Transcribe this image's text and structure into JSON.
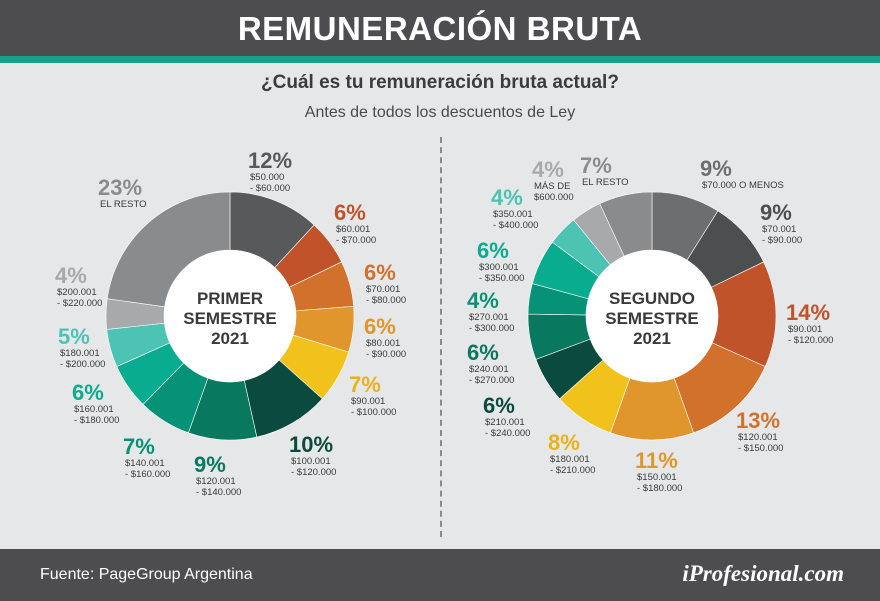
{
  "header": {
    "title": "REMUNERACIÓN BRUTA"
  },
  "question": "¿Cuál es tu remuneración bruta actual?",
  "subtitle": "Antes de todos los descuentos de Ley",
  "footer": {
    "source": "Fuente: PageGroup Argentina",
    "brand": "iProfesional.com"
  },
  "chart_data": [
    {
      "type": "pie",
      "title": "PRIMER SEMESTRE 2021",
      "slices": [
        {
          "pct": "12%",
          "value": 12,
          "range": [
            "$50.000",
            "- $60.000"
          ],
          "color": "#58595b"
        },
        {
          "pct": "6%",
          "value": 6,
          "range": [
            "$60.001",
            "- $70.000"
          ],
          "color": "#c0532a"
        },
        {
          "pct": "6%",
          "value": 6,
          "range": [
            "$70.001",
            "- $80.000"
          ],
          "color": "#d2712c"
        },
        {
          "pct": "6%",
          "value": 6,
          "range": [
            "$80.001",
            "- $90.000"
          ],
          "color": "#e0962d"
        },
        {
          "pct": "7%",
          "value": 7,
          "range": [
            "$90.001",
            "- $100.000"
          ],
          "color": "#f2c21c"
        },
        {
          "pct": "10%",
          "value": 10,
          "range": [
            "$100.001",
            "- $120.000"
          ],
          "color": "#0b4b3f"
        },
        {
          "pct": "9%",
          "value": 9,
          "range": [
            "$120.001",
            "- $140.000"
          ],
          "color": "#08785f"
        },
        {
          "pct": "7%",
          "value": 7,
          "range": [
            "$140.001",
            "- $160.000"
          ],
          "color": "#069276"
        },
        {
          "pct": "6%",
          "value": 6,
          "range": [
            "$160.001",
            "- $180.000"
          ],
          "color": "#0aac8f"
        },
        {
          "pct": "5%",
          "value": 5,
          "range": [
            "$180.001",
            "- $200.000"
          ],
          "color": "#4dc3b4"
        },
        {
          "pct": "4%",
          "value": 4,
          "range": [
            "$200.001",
            "- $220.000"
          ],
          "color": "#a8a9ab"
        },
        {
          "pct": "23%",
          "value": 23,
          "range": [
            "EL RESTO"
          ],
          "color": "#8a8b8d"
        }
      ]
    },
    {
      "type": "pie",
      "title": "SEGUNDO SEMESTRE 2021",
      "slices": [
        {
          "pct": "9%",
          "value": 9,
          "range": [
            "$70.000 O MENOS"
          ],
          "color": "#6d6e70"
        },
        {
          "pct": "9%",
          "value": 9,
          "range": [
            "$70.001",
            "- $90.000"
          ],
          "color": "#4d4e50"
        },
        {
          "pct": "14%",
          "value": 14,
          "range": [
            "$90.001",
            "- $120.000"
          ],
          "color": "#c0532a"
        },
        {
          "pct": "13%",
          "value": 13,
          "range": [
            "$120.001",
            "- $150.000"
          ],
          "color": "#d2712c"
        },
        {
          "pct": "11%",
          "value": 11,
          "range": [
            "$150.001",
            "- $180.000"
          ],
          "color": "#e0962d"
        },
        {
          "pct": "8%",
          "value": 8,
          "range": [
            "$180.001",
            "- $210.000"
          ],
          "color": "#f2c21c"
        },
        {
          "pct": "6%",
          "value": 6,
          "range": [
            "$210.001",
            "- $240.000"
          ],
          "color": "#0b4b3f"
        },
        {
          "pct": "6%",
          "value": 6,
          "range": [
            "$240.001",
            "- $270.000"
          ],
          "color": "#08785f"
        },
        {
          "pct": "4%",
          "value": 4,
          "range": [
            "$270.001",
            "- $300.000"
          ],
          "color": "#069276"
        },
        {
          "pct": "6%",
          "value": 6,
          "range": [
            "$300.001",
            "- $350.000"
          ],
          "color": "#0aac8f"
        },
        {
          "pct": "4%",
          "value": 4,
          "range": [
            "$350.001",
            "- $400.000"
          ],
          "color": "#4dc3b4"
        },
        {
          "pct": "4%",
          "value": 4,
          "range": [
            "MÁS DE",
            "$600.000"
          ],
          "color": "#a8a9ab"
        },
        {
          "pct": "7%",
          "value": 7,
          "range": [
            "EL RESTO"
          ],
          "color": "#8a8b8d"
        }
      ]
    }
  ]
}
